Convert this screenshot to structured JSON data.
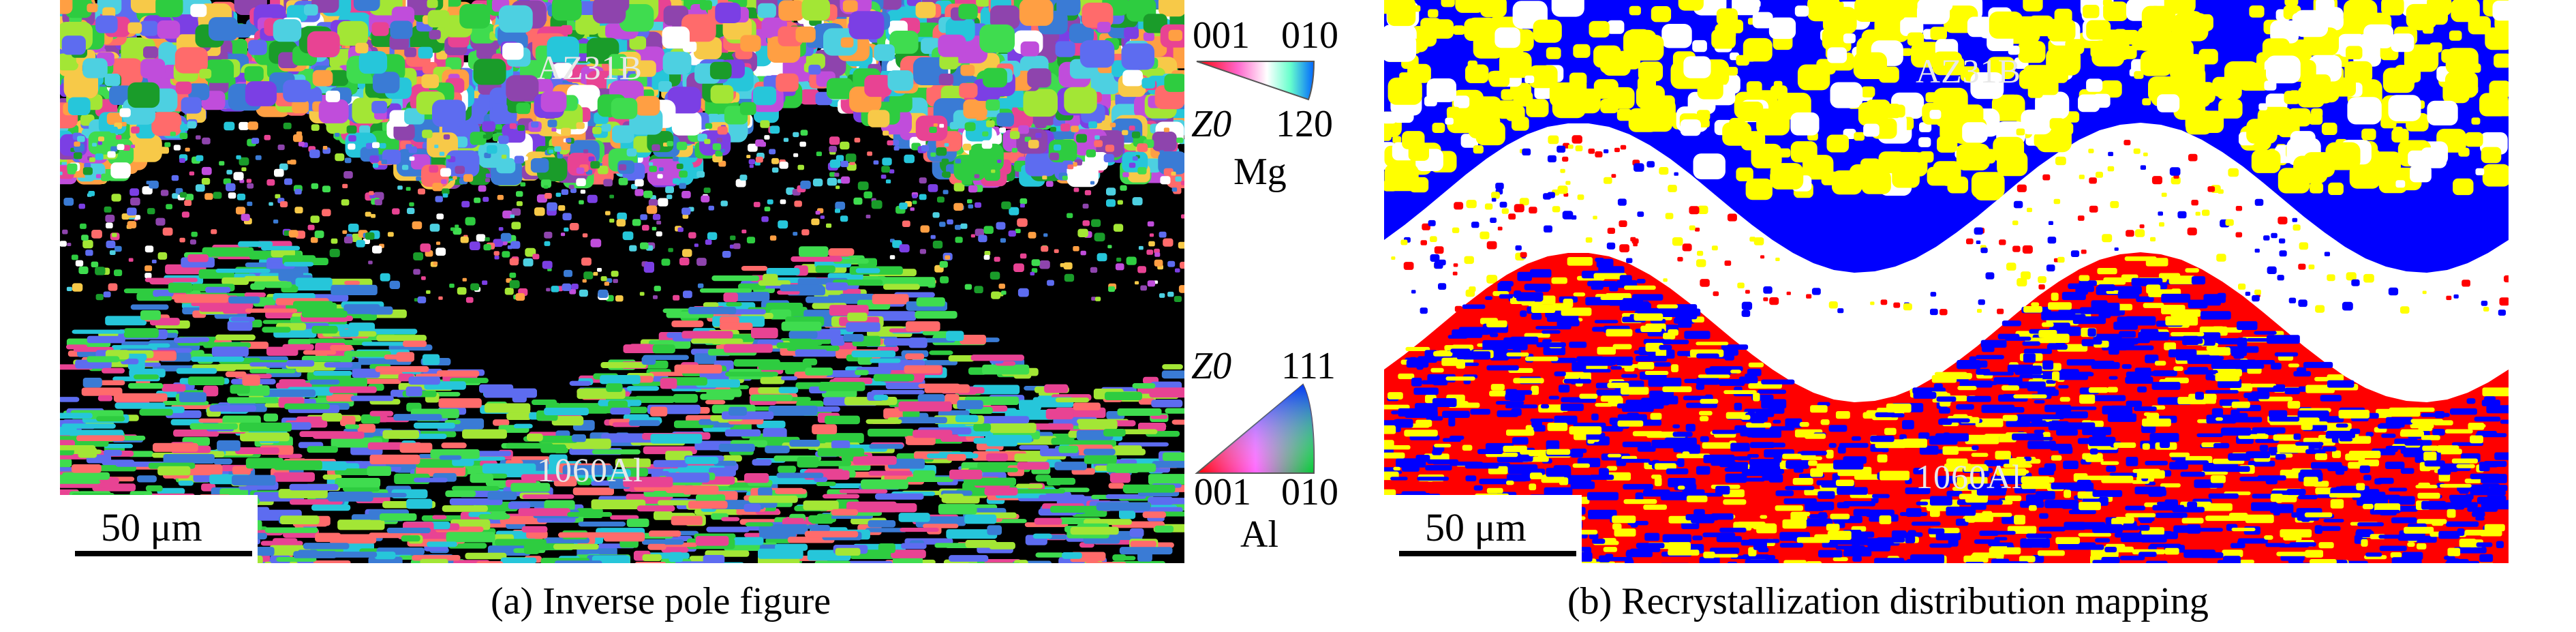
{
  "panel_a": {
    "label_top": "AZ31B",
    "label_bottom": "1060Al",
    "scalebar": "50 μm",
    "caption": "(a) Inverse pole figure"
  },
  "key_mg": {
    "top_left": "001",
    "top_right": "010",
    "bottom_left": "Z0",
    "bottom_right": "120",
    "metal": "Mg"
  },
  "key_al": {
    "top_left": "Z0",
    "top_right": "111",
    "bottom_left": "001",
    "bottom_right": "010",
    "metal": "Al"
  },
  "panel_b": {
    "label_top": "AZ31B",
    "label_bottom": "1060Al",
    "scalebar": "50 μm",
    "caption": "(b) Recrystallization distribution mapping"
  },
  "colors": {
    "ipf_palette": [
      "#2ecc40",
      "#3fdc4f",
      "#1a9c2a",
      "#3a7bd5",
      "#5d6cf0",
      "#7b3fe4",
      "#c04ddb",
      "#e84393",
      "#ff6b6b",
      "#ff9f43",
      "#f7c948",
      "#4dd0e1",
      "#26c6da",
      "#8e44ad",
      "#a3e635",
      "#ffffff"
    ],
    "recrystallized": "#0000ff",
    "substructured": "#ffff00",
    "deformed": "#ff0000",
    "non_indexed": "#ffffff"
  }
}
